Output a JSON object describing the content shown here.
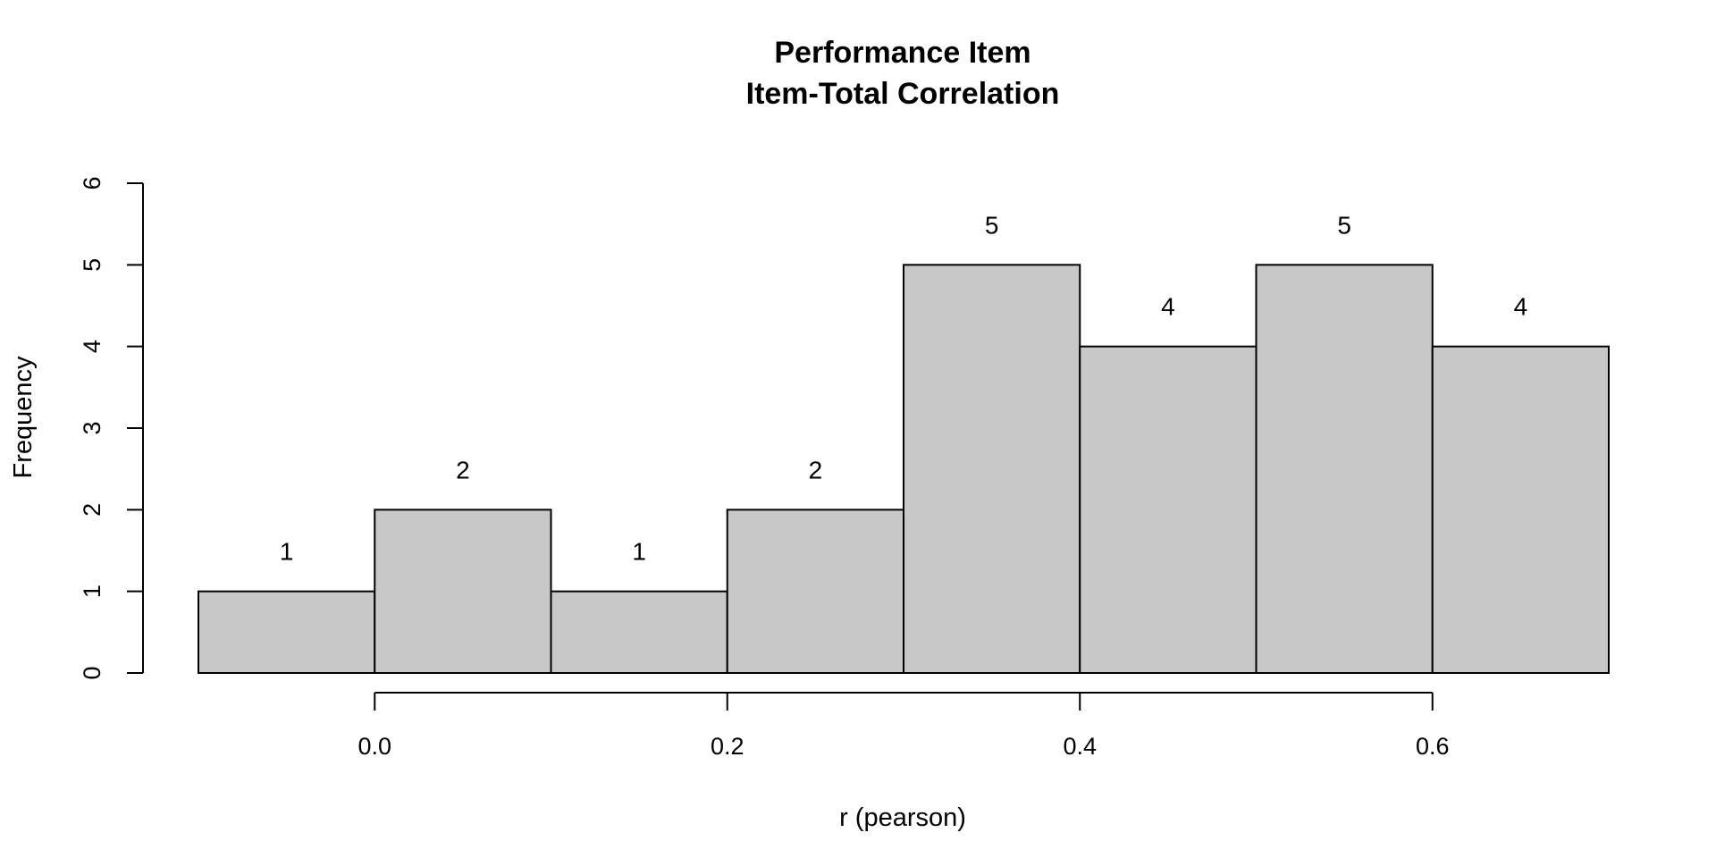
{
  "chart_data": {
    "type": "bar",
    "title": "Performance Item",
    "subtitle": "Item-Total Correlation",
    "xlabel": "r (pearson)",
    "ylabel": "Frequency",
    "bins": [
      {
        "start": -0.1,
        "end": 0.0,
        "count": 1
      },
      {
        "start": 0.0,
        "end": 0.1,
        "count": 2
      },
      {
        "start": 0.1,
        "end": 0.2,
        "count": 1
      },
      {
        "start": 0.2,
        "end": 0.3,
        "count": 2
      },
      {
        "start": 0.3,
        "end": 0.4,
        "count": 5
      },
      {
        "start": 0.4,
        "end": 0.5,
        "count": 4
      },
      {
        "start": 0.5,
        "end": 0.6,
        "count": 5
      },
      {
        "start": 0.6,
        "end": 0.7,
        "count": 4
      }
    ],
    "xlim": [
      -0.1,
      0.7
    ],
    "ylim": [
      0,
      6
    ],
    "xticks": [
      0.0,
      0.2,
      0.4,
      0.6
    ],
    "xtick_labels": [
      "0.0",
      "0.2",
      "0.4",
      "0.6"
    ],
    "yticks": [
      0,
      1,
      2,
      3,
      4,
      5,
      6
    ],
    "ytick_labels": [
      "0",
      "1",
      "2",
      "3",
      "4",
      "5",
      "6"
    ],
    "bar_color": "#c8c8c8",
    "border_color": "#000000",
    "grid": false,
    "legend": "none"
  }
}
